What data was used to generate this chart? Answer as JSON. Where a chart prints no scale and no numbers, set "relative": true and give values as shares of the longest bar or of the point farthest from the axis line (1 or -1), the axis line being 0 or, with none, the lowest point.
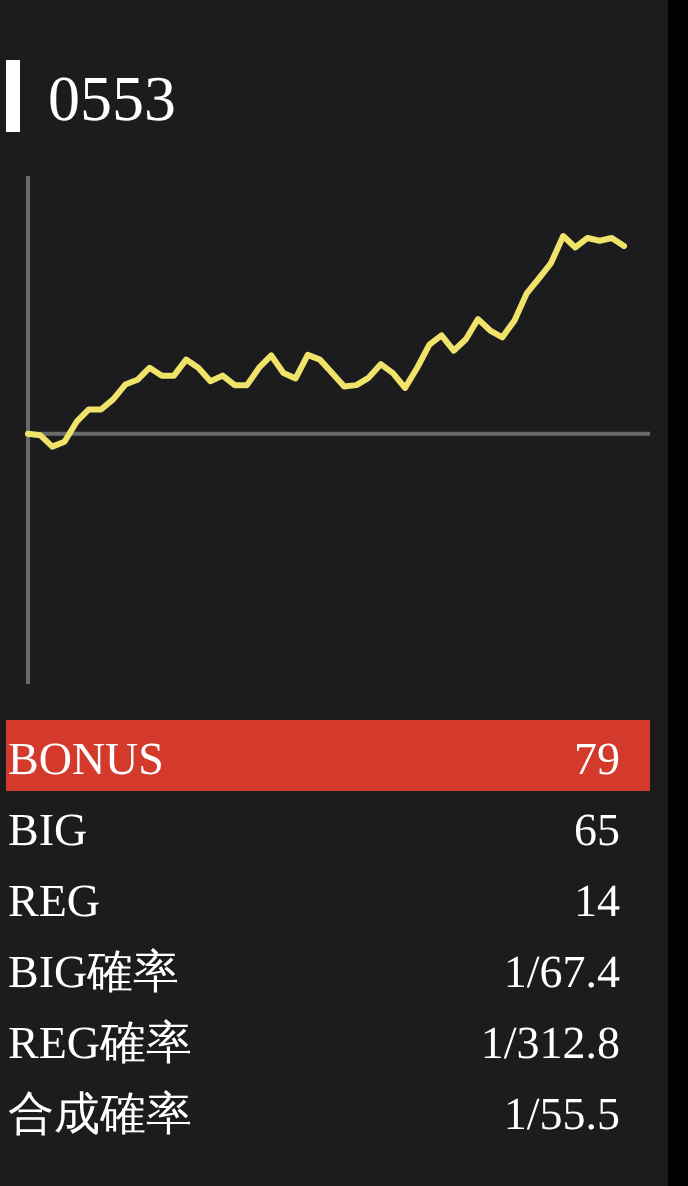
{
  "chart_data": [
    {
      "type": "line",
      "title": "0553",
      "relative": true,
      "marker": "none",
      "line_style": "solid",
      "categories": [
        null,
        null,
        null,
        null,
        null,
        null,
        null,
        null,
        null,
        null,
        null,
        null,
        null,
        null,
        null,
        null,
        null,
        null,
        null,
        null,
        null,
        null,
        null,
        null,
        null,
        null,
        null,
        null,
        null,
        null,
        null,
        null,
        null,
        null,
        null,
        null,
        null,
        null,
        null,
        null,
        null,
        null,
        null,
        null,
        null,
        null,
        null,
        null,
        null,
        null
      ],
      "series": [
        {
          "color": "#f0e36a",
          "values": [
            0,
            -0.007,
            -0.065,
            -0.04,
            0.061,
            0.123,
            0.123,
            0.174,
            0.249,
            0.273,
            0.334,
            0.294,
            0.294,
            0.375,
            0.334,
            0.266,
            0.294,
            0.246,
            0.246,
            0.334,
            0.396,
            0.307,
            0.28,
            0.399,
            0.375,
            0.307,
            0.239,
            0.246,
            0.283,
            0.352,
            0.307,
            0.232,
            0.334,
            0.451,
            0.498,
            0.42,
            0.478,
            0.58,
            0.522,
            0.488,
            0.573,
            0.71,
            0.785,
            0.863,
            1,
            0.942,
            0.99,
            0.976,
            0.99,
            0.949
          ]
        }
      ]
    },
    {
      "type": "other",
      "categories": [
        "BONUS",
        "BIG",
        "REG",
        "BIG確率",
        "REG確率",
        "合成確率"
      ],
      "value_labels": [
        "79",
        "65",
        "14",
        "1/67.4",
        "1/312.8",
        "1/55.5"
      ],
      "colors": [
        "#d33a2c",
        null,
        null,
        null,
        null,
        null
      ]
    }
  ]
}
